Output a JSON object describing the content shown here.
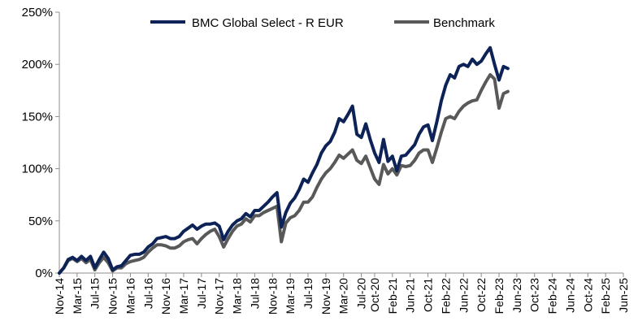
{
  "chart_data": {
    "type": "line",
    "title": "",
    "xlabel": "",
    "ylabel": "",
    "ylim": [
      0,
      250
    ],
    "yticks": [
      "0%",
      "50%",
      "100%",
      "150%",
      "200%",
      "250%"
    ],
    "ytick_values": [
      0,
      50,
      100,
      150,
      200,
      250
    ],
    "xlim": [
      0,
      127
    ],
    "xticks": [
      "Nov-14",
      "Mar-15",
      "Jul-15",
      "Nov-15",
      "Mar-16",
      "Jul-16",
      "Nov-16",
      "Mar-17",
      "Jul-17",
      "Nov-17",
      "Mar-18",
      "Jul-18",
      "Nov-18",
      "Mar-19",
      "Jul-19",
      "Nov-19",
      "Mar-20",
      "Jul-20",
      "Oct-20",
      "Feb-21",
      "Jun-21",
      "Oct-21",
      "Feb-22",
      "Jun-22",
      "Oct-22",
      "Feb-23",
      "Jun-23",
      "Oct-23",
      "Feb-24",
      "Jun-24",
      "Oct-24",
      "Feb-25",
      "Jun-25"
    ],
    "xtick_positions": [
      0,
      4,
      8,
      12,
      16,
      20,
      24,
      28,
      32,
      36,
      40,
      44,
      48,
      52,
      56,
      60,
      64,
      68,
      71,
      75,
      79,
      83,
      87,
      91,
      95,
      99,
      103,
      107,
      111,
      115,
      119,
      123,
      127
    ],
    "legend_position": "top",
    "series": [
      {
        "name": "BMC Global Select - R EUR",
        "color": "#0d2357",
        "points": [
          [
            0,
            0
          ],
          [
            1,
            5
          ],
          [
            2,
            13
          ],
          [
            3,
            15
          ],
          [
            4,
            12
          ],
          [
            5,
            16
          ],
          [
            6,
            12
          ],
          [
            7,
            16
          ],
          [
            8,
            5
          ],
          [
            9,
            13
          ],
          [
            10,
            20
          ],
          [
            11,
            14
          ],
          [
            12,
            3
          ],
          [
            13,
            6
          ],
          [
            14,
            7
          ],
          [
            15,
            12
          ],
          [
            16,
            17
          ],
          [
            17,
            18
          ],
          [
            18,
            18
          ],
          [
            19,
            20
          ],
          [
            20,
            25
          ],
          [
            21,
            28
          ],
          [
            22,
            33
          ],
          [
            23,
            34
          ],
          [
            24,
            35
          ],
          [
            25,
            33
          ],
          [
            26,
            33
          ],
          [
            27,
            35
          ],
          [
            28,
            40
          ],
          [
            29,
            43
          ],
          [
            30,
            46
          ],
          [
            31,
            42
          ],
          [
            32,
            45
          ],
          [
            33,
            47
          ],
          [
            34,
            47
          ],
          [
            35,
            48
          ],
          [
            36,
            45
          ],
          [
            37,
            32
          ],
          [
            38,
            40
          ],
          [
            39,
            46
          ],
          [
            40,
            50
          ],
          [
            41,
            52
          ],
          [
            42,
            57
          ],
          [
            43,
            54
          ],
          [
            44,
            60
          ],
          [
            45,
            60
          ],
          [
            46,
            64
          ],
          [
            47,
            68
          ],
          [
            48,
            73
          ],
          [
            49,
            77
          ],
          [
            50,
            44
          ],
          [
            51,
            58
          ],
          [
            52,
            67
          ],
          [
            53,
            72
          ],
          [
            54,
            80
          ],
          [
            55,
            90
          ],
          [
            56,
            87
          ],
          [
            57,
            96
          ],
          [
            58,
            104
          ],
          [
            59,
            115
          ],
          [
            60,
            122
          ],
          [
            61,
            126
          ],
          [
            62,
            135
          ],
          [
            63,
            148
          ],
          [
            64,
            145
          ],
          [
            65,
            152
          ],
          [
            66,
            160
          ],
          [
            67,
            133
          ],
          [
            68,
            130
          ],
          [
            69,
            143
          ],
          [
            70,
            128
          ],
          [
            71,
            115
          ],
          [
            72,
            106
          ],
          [
            73,
            128
          ],
          [
            74,
            107
          ],
          [
            75,
            112
          ],
          [
            76,
            98
          ],
          [
            77,
            112
          ],
          [
            78,
            113
          ],
          [
            79,
            118
          ],
          [
            80,
            123
          ],
          [
            81,
            133
          ],
          [
            82,
            140
          ],
          [
            83,
            142
          ],
          [
            84,
            127
          ],
          [
            85,
            145
          ],
          [
            86,
            165
          ],
          [
            87,
            180
          ],
          [
            88,
            190
          ],
          [
            89,
            187
          ],
          [
            90,
            198
          ],
          [
            91,
            200
          ],
          [
            92,
            198
          ],
          [
            93,
            205
          ],
          [
            94,
            200
          ],
          [
            95,
            203
          ],
          [
            96,
            210
          ],
          [
            97,
            216
          ],
          [
            98,
            200
          ],
          [
            99,
            185
          ],
          [
            100,
            198
          ],
          [
            101,
            196
          ]
        ]
      },
      {
        "name": "Benchmark",
        "color": "#595959",
        "points": [
          [
            0,
            0
          ],
          [
            1,
            5
          ],
          [
            2,
            12
          ],
          [
            3,
            14
          ],
          [
            4,
            11
          ],
          [
            5,
            14
          ],
          [
            6,
            10
          ],
          [
            7,
            13
          ],
          [
            8,
            3
          ],
          [
            9,
            10
          ],
          [
            10,
            15
          ],
          [
            11,
            10
          ],
          [
            12,
            2
          ],
          [
            13,
            5
          ],
          [
            14,
            5
          ],
          [
            15,
            9
          ],
          [
            16,
            11
          ],
          [
            17,
            12
          ],
          [
            18,
            13
          ],
          [
            19,
            15
          ],
          [
            20,
            20
          ],
          [
            21,
            24
          ],
          [
            22,
            27
          ],
          [
            23,
            27
          ],
          [
            24,
            26
          ],
          [
            25,
            24
          ],
          [
            26,
            24
          ],
          [
            27,
            26
          ],
          [
            28,
            30
          ],
          [
            29,
            32
          ],
          [
            30,
            33
          ],
          [
            31,
            28
          ],
          [
            32,
            33
          ],
          [
            33,
            37
          ],
          [
            34,
            40
          ],
          [
            35,
            42
          ],
          [
            36,
            35
          ],
          [
            37,
            25
          ],
          [
            38,
            33
          ],
          [
            39,
            40
          ],
          [
            40,
            45
          ],
          [
            41,
            47
          ],
          [
            42,
            52
          ],
          [
            43,
            49
          ],
          [
            44,
            55
          ],
          [
            45,
            55
          ],
          [
            46,
            58
          ],
          [
            47,
            60
          ],
          [
            48,
            62
          ],
          [
            49,
            64
          ],
          [
            50,
            30
          ],
          [
            51,
            48
          ],
          [
            52,
            53
          ],
          [
            53,
            55
          ],
          [
            54,
            60
          ],
          [
            55,
            68
          ],
          [
            56,
            68
          ],
          [
            57,
            73
          ],
          [
            58,
            82
          ],
          [
            59,
            90
          ],
          [
            60,
            96
          ],
          [
            61,
            100
          ],
          [
            62,
            106
          ],
          [
            63,
            113
          ],
          [
            64,
            110
          ],
          [
            65,
            114
          ],
          [
            66,
            118
          ],
          [
            67,
            108
          ],
          [
            68,
            105
          ],
          [
            69,
            112
          ],
          [
            70,
            101
          ],
          [
            71,
            90
          ],
          [
            72,
            85
          ],
          [
            73,
            104
          ],
          [
            74,
            95
          ],
          [
            75,
            100
          ],
          [
            76,
            94
          ],
          [
            77,
            103
          ],
          [
            78,
            102
          ],
          [
            79,
            103
          ],
          [
            80,
            108
          ],
          [
            81,
            115
          ],
          [
            82,
            118
          ],
          [
            83,
            118
          ],
          [
            84,
            106
          ],
          [
            85,
            120
          ],
          [
            86,
            135
          ],
          [
            87,
            148
          ],
          [
            88,
            150
          ],
          [
            89,
            148
          ],
          [
            90,
            155
          ],
          [
            91,
            160
          ],
          [
            92,
            163
          ],
          [
            93,
            165
          ],
          [
            94,
            166
          ],
          [
            95,
            175
          ],
          [
            96,
            183
          ],
          [
            97,
            190
          ],
          [
            98,
            186
          ],
          [
            99,
            158
          ],
          [
            100,
            172
          ],
          [
            101,
            174
          ]
        ]
      }
    ]
  }
}
